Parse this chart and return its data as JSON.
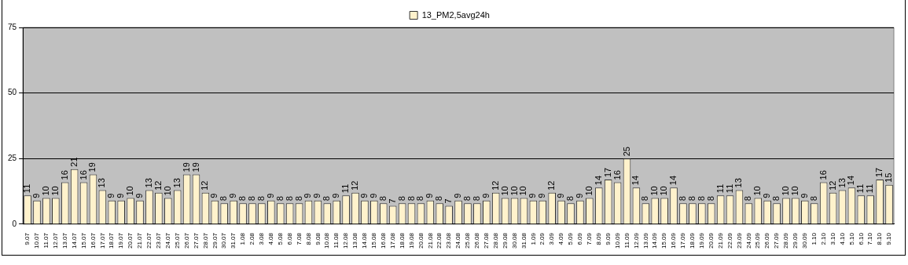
{
  "chart_data": {
    "type": "bar",
    "categories": [
      "9.07",
      "10.07",
      "11.07",
      "12.07",
      "13.07",
      "14.07",
      "15.07",
      "16.07",
      "17.07",
      "18.07",
      "19.07",
      "20.07",
      "21.07",
      "22.07",
      "23.07",
      "24.07",
      "25.07",
      "26.07",
      "27.07",
      "28.07",
      "29.07",
      "30.07",
      "31.07",
      "1.08",
      "2.08",
      "3.08",
      "4.08",
      "5.08",
      "6.08",
      "7.08",
      "8.08",
      "9.08",
      "10.08",
      "11.08",
      "12.08",
      "13.08",
      "14.08",
      "15.08",
      "16.08",
      "17.08",
      "18.08",
      "19.08",
      "20.08",
      "21.08",
      "22.08",
      "23.08",
      "24.08",
      "25.08",
      "26.08",
      "27.08",
      "28.08",
      "29.08",
      "30.08",
      "31.08",
      "1.09",
      "2.09",
      "3.09",
      "4.09",
      "5.09",
      "6.09",
      "7.09",
      "8.09",
      "9.09",
      "10.09",
      "11.09",
      "12.09",
      "13.09",
      "14.09",
      "15.09",
      "16.09",
      "17.09",
      "18.09",
      "19.09",
      "20.09",
      "21.09",
      "22.09",
      "23.09",
      "24.09",
      "25.09",
      "26.09",
      "27.09",
      "28.09",
      "29.09",
      "30.09",
      "1.10",
      "2.10",
      "3.10",
      "4.10",
      "5.10",
      "6.10",
      "7.10",
      "8.10",
      "9.10"
    ],
    "series": [
      {
        "name": "13_PM2,5avg24h",
        "color": "#fff2cc",
        "values": [
          11,
          9,
          10,
          10,
          16,
          21,
          16,
          19,
          13,
          9,
          9,
          10,
          9,
          13,
          12,
          10,
          13,
          19,
          19,
          12,
          9,
          8,
          9,
          8,
          8,
          8,
          9,
          8,
          8,
          8,
          9,
          9,
          8,
          9,
          11,
          12,
          9,
          9,
          8,
          7,
          8,
          8,
          8,
          9,
          8,
          7,
          9,
          8,
          8,
          9,
          12,
          10,
          10,
          10,
          9,
          9,
          12,
          9,
          8,
          9,
          10,
          14,
          17,
          16,
          25,
          14,
          8,
          10,
          10,
          14,
          8,
          8,
          8,
          8,
          11,
          11,
          13,
          8,
          10,
          9,
          8,
          10,
          10,
          9,
          8,
          16,
          12,
          13,
          14,
          11,
          11,
          17,
          15
        ]
      }
    ],
    "ylim": [
      0,
      75
    ],
    "yticks": [
      0,
      25,
      50,
      75
    ],
    "grid": "y",
    "legend": "top",
    "data_labels": true
  }
}
